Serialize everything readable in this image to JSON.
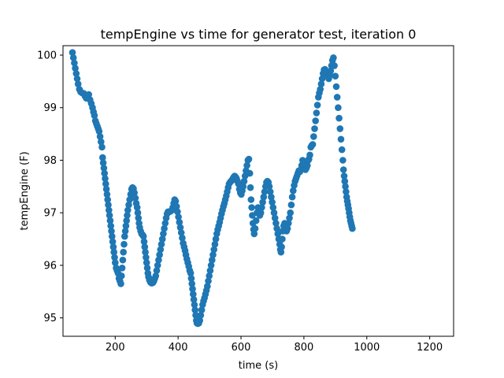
{
  "chart_data": {
    "type": "scatter",
    "title": "tempEngine vs time for generator test, iteration 0",
    "xlabel": "time (s)",
    "ylabel": "tempEngine (F)",
    "xlim": [
      34,
      1276
    ],
    "ylim": [
      94.65,
      100.18
    ],
    "xticks": [
      200,
      400,
      600,
      800,
      1000,
      1200
    ],
    "yticks": [
      95,
      96,
      97,
      98,
      99,
      100
    ],
    "grid": false,
    "legend": "none",
    "marker_color": "#1f77b4",
    "series": [
      {
        "points": [
          [
            64,
            100.05
          ],
          [
            67,
            99.95
          ],
          [
            70,
            99.85
          ],
          [
            73,
            99.75
          ],
          [
            76,
            99.65
          ],
          [
            79,
            99.55
          ],
          [
            82,
            99.45
          ],
          [
            86,
            99.35
          ],
          [
            90,
            99.3
          ],
          [
            95,
            99.28
          ],
          [
            100,
            99.27
          ],
          [
            104,
            99.22
          ],
          [
            108,
            99.18
          ],
          [
            112,
            99.2
          ],
          [
            116,
            99.25
          ],
          [
            120,
            99.15
          ],
          [
            124,
            99.08
          ],
          [
            128,
            99.0
          ],
          [
            131,
            98.92
          ],
          [
            134,
            98.85
          ],
          [
            137,
            98.75
          ],
          [
            140,
            98.7
          ],
          [
            143,
            98.65
          ],
          [
            146,
            98.6
          ],
          [
            149,
            98.55
          ],
          [
            152,
            98.45
          ],
          [
            155,
            98.35
          ],
          [
            158,
            98.25
          ],
          [
            160,
            98.05
          ],
          [
            162,
            97.95
          ],
          [
            164,
            97.85
          ],
          [
            166,
            97.75
          ],
          [
            168,
            97.65
          ],
          [
            170,
            97.55
          ],
          [
            172,
            97.45
          ],
          [
            174,
            97.35
          ],
          [
            176,
            97.25
          ],
          [
            178,
            97.15
          ],
          [
            180,
            97.05
          ],
          [
            182,
            96.95
          ],
          [
            184,
            96.85
          ],
          [
            186,
            96.75
          ],
          [
            188,
            96.65
          ],
          [
            190,
            96.55
          ],
          [
            192,
            96.45
          ],
          [
            194,
            96.35
          ],
          [
            196,
            96.25
          ],
          [
            198,
            96.15
          ],
          [
            200,
            96.05
          ],
          [
            203,
            95.95
          ],
          [
            206,
            95.9
          ],
          [
            209,
            95.85
          ],
          [
            212,
            95.75
          ],
          [
            215,
            95.7
          ],
          [
            218,
            95.65
          ],
          [
            220,
            95.8
          ],
          [
            222,
            95.95
          ],
          [
            224,
            96.1
          ],
          [
            226,
            96.25
          ],
          [
            228,
            96.4
          ],
          [
            230,
            96.55
          ],
          [
            232,
            96.65
          ],
          [
            234,
            96.75
          ],
          [
            236,
            96.85
          ],
          [
            238,
            96.95
          ],
          [
            240,
            97.05
          ],
          [
            243,
            97.15
          ],
          [
            246,
            97.25
          ],
          [
            249,
            97.35
          ],
          [
            252,
            97.45
          ],
          [
            255,
            97.48
          ],
          [
            258,
            97.46
          ],
          [
            261,
            97.38
          ],
          [
            264,
            97.28
          ],
          [
            267,
            97.18
          ],
          [
            270,
            97.1
          ],
          [
            272,
            97.0
          ],
          [
            274,
            96.9
          ],
          [
            276,
            96.8
          ],
          [
            278,
            96.72
          ],
          [
            281,
            96.65
          ],
          [
            284,
            96.6
          ],
          [
            287,
            96.58
          ],
          [
            290,
            96.55
          ],
          [
            292,
            96.45
          ],
          [
            294,
            96.35
          ],
          [
            296,
            96.25
          ],
          [
            298,
            96.15
          ],
          [
            300,
            96.05
          ],
          [
            302,
            95.95
          ],
          [
            304,
            95.85
          ],
          [
            306,
            95.78
          ],
          [
            309,
            95.72
          ],
          [
            312,
            95.68
          ],
          [
            316,
            95.66
          ],
          [
            320,
            95.67
          ],
          [
            323,
            95.7
          ],
          [
            326,
            95.75
          ],
          [
            329,
            95.8
          ],
          [
            332,
            95.9
          ],
          [
            335,
            96.0
          ],
          [
            338,
            96.1
          ],
          [
            341,
            96.2
          ],
          [
            344,
            96.3
          ],
          [
            347,
            96.4
          ],
          [
            350,
            96.5
          ],
          [
            353,
            96.6
          ],
          [
            356,
            96.7
          ],
          [
            359,
            96.8
          ],
          [
            362,
            96.9
          ],
          [
            365,
            96.98
          ],
          [
            368,
            97.02
          ],
          [
            372,
            97.02
          ],
          [
            376,
            97.03
          ],
          [
            380,
            97.05
          ],
          [
            383,
            97.1
          ],
          [
            386,
            97.18
          ],
          [
            389,
            97.25
          ],
          [
            392,
            97.22
          ],
          [
            395,
            97.12
          ],
          [
            398,
            97.02
          ],
          [
            401,
            96.92
          ],
          [
            404,
            96.82
          ],
          [
            407,
            96.72
          ],
          [
            410,
            96.62
          ],
          [
            413,
            96.52
          ],
          [
            416,
            96.42
          ],
          [
            419,
            96.35
          ],
          [
            422,
            96.28
          ],
          [
            425,
            96.2
          ],
          [
            428,
            96.12
          ],
          [
            431,
            96.05
          ],
          [
            434,
            95.98
          ],
          [
            437,
            95.9
          ],
          [
            440,
            95.85
          ],
          [
            442,
            95.75
          ],
          [
            444,
            95.65
          ],
          [
            446,
            95.55
          ],
          [
            448,
            95.45
          ],
          [
            450,
            95.35
          ],
          [
            452,
            95.25
          ],
          [
            454,
            95.15
          ],
          [
            456,
            95.05
          ],
          [
            458,
            94.95
          ],
          [
            460,
            94.9
          ],
          [
            463,
            94.89
          ],
          [
            466,
            94.9
          ],
          [
            469,
            94.95
          ],
          [
            472,
            95.05
          ],
          [
            475,
            95.15
          ],
          [
            478,
            95.25
          ],
          [
            481,
            95.32
          ],
          [
            484,
            95.38
          ],
          [
            487,
            95.45
          ],
          [
            490,
            95.52
          ],
          [
            493,
            95.6
          ],
          [
            496,
            95.7
          ],
          [
            499,
            95.8
          ],
          [
            502,
            95.9
          ],
          [
            505,
            96.0
          ],
          [
            508,
            96.1
          ],
          [
            511,
            96.2
          ],
          [
            514,
            96.3
          ],
          [
            517,
            96.4
          ],
          [
            520,
            96.5
          ],
          [
            523,
            96.6
          ],
          [
            526,
            96.68
          ],
          [
            529,
            96.75
          ],
          [
            532,
            96.82
          ],
          [
            535,
            96.9
          ],
          [
            538,
            96.98
          ],
          [
            541,
            97.05
          ],
          [
            544,
            97.12
          ],
          [
            547,
            97.18
          ],
          [
            550,
            97.25
          ],
          [
            553,
            97.32
          ],
          [
            556,
            97.4
          ],
          [
            559,
            97.48
          ],
          [
            562,
            97.55
          ],
          [
            565,
            97.58
          ],
          [
            568,
            97.6
          ],
          [
            571,
            97.62
          ],
          [
            574,
            97.65
          ],
          [
            577,
            97.68
          ],
          [
            580,
            97.7
          ],
          [
            583,
            97.68
          ],
          [
            586,
            97.65
          ],
          [
            589,
            97.6
          ],
          [
            592,
            97.55
          ],
          [
            595,
            97.45
          ],
          [
            598,
            97.38
          ],
          [
            601,
            97.35
          ],
          [
            604,
            97.42
          ],
          [
            607,
            97.5
          ],
          [
            610,
            97.6
          ],
          [
            613,
            97.7
          ],
          [
            616,
            97.8
          ],
          [
            619,
            97.9
          ],
          [
            622,
            98.0
          ],
          [
            625,
            98.02
          ],
          [
            628,
            97.75
          ],
          [
            630,
            97.48
          ],
          [
            632,
            97.25
          ],
          [
            634,
            97.1
          ],
          [
            636,
            96.95
          ],
          [
            638,
            96.8
          ],
          [
            640,
            96.68
          ],
          [
            642,
            96.6
          ],
          [
            645,
            96.7
          ],
          [
            648,
            96.85
          ],
          [
            651,
            97.0
          ],
          [
            654,
            97.1
          ],
          [
            657,
            97.05
          ],
          [
            660,
            96.95
          ],
          [
            663,
            97.0
          ],
          [
            666,
            97.1
          ],
          [
            669,
            97.2
          ],
          [
            672,
            97.3
          ],
          [
            675,
            97.4
          ],
          [
            678,
            97.5
          ],
          [
            681,
            97.58
          ],
          [
            684,
            97.6
          ],
          [
            687,
            97.58
          ],
          [
            690,
            97.5
          ],
          [
            693,
            97.4
          ],
          [
            696,
            97.3
          ],
          [
            699,
            97.2
          ],
          [
            702,
            97.1
          ],
          [
            705,
            97.0
          ],
          [
            708,
            96.9
          ],
          [
            711,
            96.8
          ],
          [
            714,
            96.7
          ],
          [
            717,
            96.6
          ],
          [
            720,
            96.5
          ],
          [
            723,
            96.4
          ],
          [
            725,
            96.3
          ],
          [
            727,
            96.25
          ],
          [
            729,
            96.35
          ],
          [
            731,
            96.5
          ],
          [
            733,
            96.65
          ],
          [
            736,
            96.75
          ],
          [
            739,
            96.8
          ],
          [
            742,
            96.72
          ],
          [
            745,
            96.65
          ],
          [
            748,
            96.7
          ],
          [
            751,
            96.8
          ],
          [
            754,
            96.9
          ],
          [
            757,
            97.0
          ],
          [
            760,
            97.15
          ],
          [
            763,
            97.3
          ],
          [
            766,
            97.42
          ],
          [
            769,
            97.52
          ],
          [
            772,
            97.6
          ],
          [
            775,
            97.65
          ],
          [
            778,
            97.7
          ],
          [
            781,
            97.75
          ],
          [
            784,
            97.8
          ],
          [
            787,
            97.78
          ],
          [
            790,
            97.82
          ],
          [
            793,
            97.9
          ],
          [
            796,
            98.0
          ],
          [
            799,
            97.92
          ],
          [
            802,
            97.85
          ],
          [
            805,
            97.82
          ],
          [
            808,
            97.85
          ],
          [
            811,
            97.9
          ],
          [
            814,
            98.0
          ],
          [
            816,
            98.02
          ],
          [
            819,
            98.1
          ],
          [
            822,
            98.25
          ],
          [
            825,
            98.28
          ],
          [
            828,
            98.3
          ],
          [
            831,
            98.45
          ],
          [
            834,
            98.6
          ],
          [
            837,
            98.75
          ],
          [
            840,
            98.9
          ],
          [
            843,
            99.05
          ],
          [
            846,
            99.2
          ],
          [
            849,
            99.28
          ],
          [
            852,
            99.35
          ],
          [
            855,
            99.45
          ],
          [
            858,
            99.55
          ],
          [
            861,
            99.65
          ],
          [
            864,
            99.72
          ],
          [
            867,
            99.73
          ],
          [
            870,
            99.7
          ],
          [
            873,
            99.65
          ],
          [
            876,
            99.6
          ],
          [
            879,
            99.55
          ],
          [
            882,
            99.62
          ],
          [
            885,
            99.7
          ],
          [
            888,
            99.8
          ],
          [
            891,
            99.9
          ],
          [
            894,
            99.95
          ],
          [
            897,
            99.8
          ],
          [
            900,
            99.6
          ],
          [
            903,
            99.4
          ],
          [
            906,
            99.2
          ],
          [
            909,
            99.0
          ],
          [
            912,
            98.8
          ],
          [
            915,
            98.6
          ],
          [
            918,
            98.4
          ],
          [
            921,
            98.2
          ],
          [
            924,
            98.0
          ],
          [
            926,
            97.82
          ],
          [
            928,
            97.7
          ],
          [
            930,
            97.6
          ],
          [
            932,
            97.5
          ],
          [
            934,
            97.4
          ],
          [
            936,
            97.3
          ],
          [
            938,
            97.22
          ],
          [
            940,
            97.15
          ],
          [
            942,
            97.08
          ],
          [
            944,
            97.0
          ],
          [
            946,
            96.92
          ],
          [
            948,
            96.85
          ],
          [
            950,
            96.8
          ],
          [
            952,
            96.75
          ],
          [
            954,
            96.7
          ]
        ]
      }
    ]
  }
}
